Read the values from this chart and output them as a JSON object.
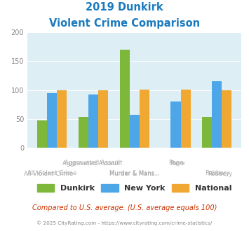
{
  "title_line1": "2019 Dunkirk",
  "title_line2": "Violent Crime Comparison",
  "title_color": "#1a7abf",
  "dunkirk": [
    48,
    53,
    170,
    0,
    54
  ],
  "newyork": [
    95,
    92,
    57,
    80,
    115
  ],
  "national": [
    100,
    100,
    101,
    101,
    100
  ],
  "dunkirk_color": "#7db83a",
  "newyork_color": "#4da6e8",
  "national_color": "#f0a832",
  "ylim": [
    0,
    200
  ],
  "yticks": [
    0,
    50,
    100,
    150,
    200
  ],
  "bg_color": "#ddeef4",
  "legend_labels": [
    "Dunkirk",
    "New York",
    "National"
  ],
  "footnote1": "Compared to U.S. average. (U.S. average equals 100)",
  "footnote2": "© 2025 CityRating.com - https://www.cityrating.com/crime-statistics/",
  "footnote1_color": "#cc3300",
  "footnote2_color": "#888888",
  "row1_labels": [
    "",
    "Aggravated Assault",
    "",
    "Rape",
    ""
  ],
  "row2_labels": [
    "All Violent Crime",
    "",
    "Murder & Mans...",
    "",
    "Robbery"
  ]
}
